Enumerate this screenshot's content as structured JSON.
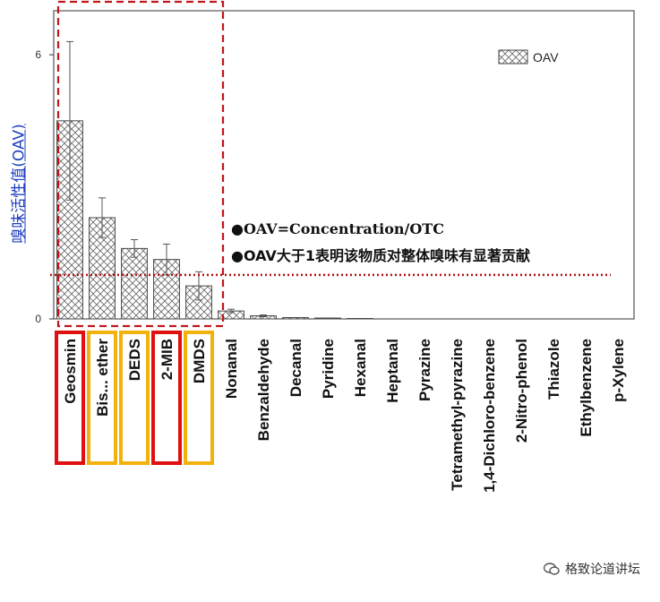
{
  "chart_data": {
    "type": "bar",
    "ylabel": "嗅味活性值(OAV)",
    "xlabel": "",
    "ylim": [
      0,
      7
    ],
    "yticks": [
      0,
      6
    ],
    "categories": [
      "Geosmin",
      "Bis... ether",
      "DEDS",
      "2-MIB",
      "DMDS",
      "Nonanal",
      "Benzaldehyde",
      "Decanal",
      "Pyridine",
      "Hexanal",
      "Heptanal",
      "Pyrazine",
      "Tetramethyl-pyrazine",
      "1,4-Dichloro-benzene",
      "2-Nitro-phenol",
      "Thiazole",
      "Ethylbenzene",
      "p-Xylene"
    ],
    "series": [
      {
        "name": "OAV",
        "values": [
          4.5,
          2.3,
          1.6,
          1.35,
          0.75,
          0.18,
          0.07,
          0.03,
          0.02,
          0.01,
          0.0,
          0.0,
          0.0,
          0.0,
          0.0,
          0.0,
          0.0,
          0.0
        ],
        "errors": [
          1.8,
          0.45,
          0.2,
          0.35,
          0.32,
          0.04,
          0.02,
          0.0,
          0.0,
          0.0,
          0.0,
          0.0,
          0.0,
          0.0,
          0.0,
          0.0,
          0.0,
          0.0
        ]
      }
    ],
    "threshold": 1,
    "annotations": [
      "●OAV=Concentration/OTC",
      "●OAV大于1表明该物质对整体嗅味有显著贡献"
    ],
    "highlight_red": [
      "Geosmin",
      "2-MIB"
    ],
    "highlight_orange": [
      "Bis... ether",
      "DEDS",
      "DMDS"
    ],
    "legend_position": "top-right"
  },
  "colors": {
    "red": "#e01010",
    "orange": "#f2b20c",
    "ylabel": "#1f3fbf",
    "bar_edge": "#444444",
    "threshold": "#b01010"
  },
  "watermark": "格致论道讲坛"
}
